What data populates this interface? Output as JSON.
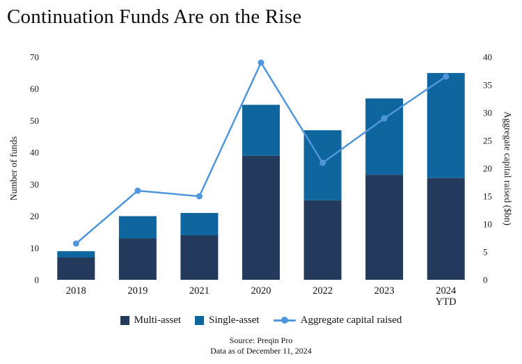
{
  "title": "Continuation Funds Are on the Rise",
  "chart_data": {
    "type": "bar",
    "subtype": "stacked-bar-with-line",
    "categories": [
      "2018",
      "2019",
      "2021",
      "2020",
      "2022",
      "2023",
      "2024 YTD"
    ],
    "series": [
      {
        "name": "Multi-asset",
        "type": "bar",
        "axis": "left",
        "color": "#233A5C",
        "values": [
          7,
          13,
          14,
          39,
          25,
          33,
          32
        ]
      },
      {
        "name": "Single-asset",
        "type": "bar",
        "axis": "left",
        "color": "#0F669F",
        "values": [
          2,
          7,
          7,
          16,
          22,
          24,
          33
        ]
      },
      {
        "name": "Aggregate capital raised",
        "type": "line",
        "axis": "right",
        "color": "#5096DC",
        "values": [
          6.5,
          16,
          15,
          39,
          21,
          29,
          36.5
        ]
      }
    ],
    "stacked_totals": [
      9,
      20,
      21,
      55,
      47,
      57,
      65
    ],
    "left_axis": {
      "label": "Number of funds",
      "min": 0,
      "max": 70,
      "step": 10
    },
    "right_axis": {
      "label": "Aggregate capital raised ($bn)",
      "min": 0,
      "max": 40,
      "step": 5
    },
    "grid": false,
    "legend_position": "bottom"
  },
  "source": {
    "line1": "Source: Preqin Pro",
    "line2": "Data as of December 11, 2024"
  }
}
